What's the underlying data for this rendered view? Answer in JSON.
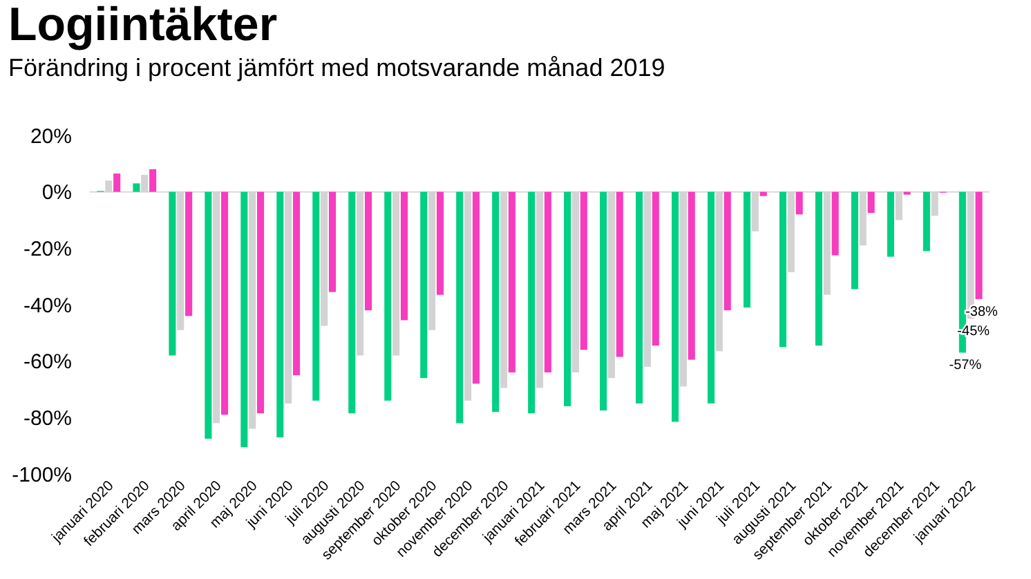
{
  "chart_data": {
    "type": "bar",
    "title": "Logiintäkter",
    "subtitle": "Förändring i procent jämfört med motsvarande månad 2019",
    "categories": [
      "januari 2020",
      "februari 2020",
      "mars 2020",
      "april 2020",
      "maj 2020",
      "juni 2020",
      "juli 2020",
      "augusti 2020",
      "september 2020",
      "oktober 2020",
      "november 2020",
      "december 2020",
      "januari 2021",
      "februari 2021",
      "mars 2021",
      "april 2021",
      "maj 2021",
      "juni 2021",
      "juli 2021",
      "augusti 2021",
      "september 2021",
      "oktober 2021",
      "november 2021",
      "december 2021",
      "januari 2022"
    ],
    "series": [
      {
        "color": "#00d084",
        "values": [
          0.3,
          3,
          -58,
          -87.5,
          -90.5,
          -87,
          -74,
          -78.5,
          -74,
          -66,
          -82,
          -78,
          -78.5,
          -76,
          -77.5,
          -75,
          -81.5,
          -75,
          -41,
          -55,
          -54.5,
          -34.5,
          -23,
          -21,
          -57
        ],
        "value_labels": [
          null,
          null,
          null,
          null,
          null,
          null,
          null,
          null,
          null,
          null,
          null,
          null,
          null,
          null,
          null,
          null,
          null,
          null,
          null,
          null,
          null,
          null,
          null,
          null,
          "-57%"
        ]
      },
      {
        "color": "#d3d3d3",
        "values": [
          4,
          6,
          -49,
          -82,
          -84,
          -75,
          -47.5,
          -58,
          -58,
          -49,
          -74,
          -69.5,
          -69.5,
          -64,
          -66,
          -62,
          -69,
          -56.5,
          -14,
          -28.5,
          -36.5,
          -19,
          -10,
          -8.5,
          -45
        ],
        "value_labels": [
          null,
          null,
          null,
          null,
          null,
          null,
          null,
          null,
          null,
          null,
          null,
          null,
          null,
          null,
          null,
          null,
          null,
          null,
          null,
          null,
          null,
          null,
          null,
          null,
          "-45%"
        ]
      },
      {
        "color": "#f73cbf",
        "values": [
          6.5,
          8,
          -44,
          -79,
          -78.5,
          -65,
          -35.5,
          -42,
          -45.5,
          -36.5,
          -68,
          -64,
          -64,
          -56,
          -58.5,
          -54.5,
          -59.5,
          -42,
          -1.5,
          -8,
          -22.5,
          -7.5,
          -1,
          -0.3,
          -38
        ],
        "value_labels": [
          null,
          null,
          null,
          null,
          null,
          null,
          null,
          null,
          null,
          null,
          null,
          null,
          null,
          null,
          null,
          null,
          null,
          null,
          null,
          null,
          null,
          null,
          null,
          null,
          "-38%"
        ]
      }
    ],
    "ylim": [
      -100,
      20
    ],
    "yticks": [
      {
        "value": -100,
        "label": "-100%"
      },
      {
        "value": -80,
        "label": "-80%"
      },
      {
        "value": -60,
        "label": "-60%"
      },
      {
        "value": -40,
        "label": "-40%"
      },
      {
        "value": -20,
        "label": "-20%"
      },
      {
        "value": 0,
        "label": "0%"
      },
      {
        "value": 20,
        "label": "20%"
      }
    ],
    "grid": false,
    "ref_lines": [
      {
        "axis": "y",
        "value": 0,
        "color": "#d9d9d9"
      }
    ]
  }
}
